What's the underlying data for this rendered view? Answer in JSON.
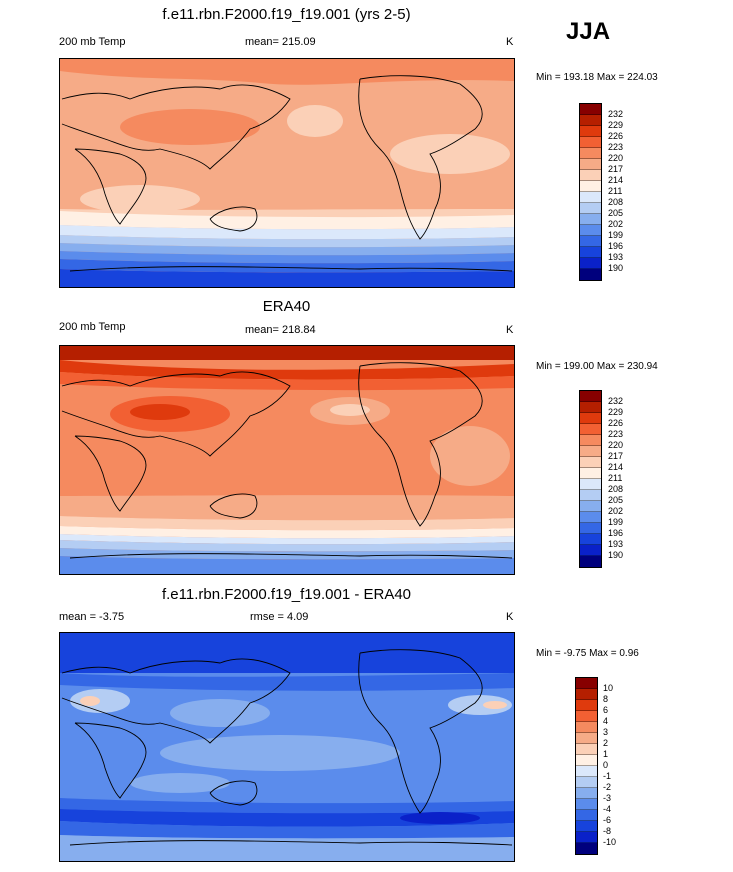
{
  "season": "JJA",
  "panels": [
    {
      "id": "model",
      "title": "f.e11.rbn.F2000.f19_f19.001 (yrs 2-5)",
      "left_label": "200 mb Temp",
      "center_label": "mean= 215.09",
      "right_label": "K",
      "minmax": "Min = 193.18 Max = 224.03",
      "levels": [
        "232",
        "229",
        "226",
        "223",
        "220",
        "217",
        "214",
        "211",
        "208",
        "205",
        "202",
        "199",
        "196",
        "193",
        "190"
      ],
      "colors": [
        "#870000",
        "#b51f00",
        "#df3a0d",
        "#f26033",
        "#f58a5f",
        "#f6ab87",
        "#fbd0b7",
        "#fff0e4",
        "#dbe8fb",
        "#b4cdf3",
        "#87aeee",
        "#5b8cec",
        "#3467e5",
        "#1743dc",
        "#0a21c9",
        "#00007d"
      ]
    },
    {
      "id": "obs",
      "title": "ERA40",
      "left_label": "200 mb Temp",
      "center_label": "mean= 218.84",
      "right_label": "K",
      "minmax": "Min = 199.00 Max = 230.94",
      "levels": [
        "232",
        "229",
        "226",
        "223",
        "220",
        "217",
        "214",
        "211",
        "208",
        "205",
        "202",
        "199",
        "196",
        "193",
        "190"
      ],
      "colors": [
        "#870000",
        "#b51f00",
        "#df3a0d",
        "#f26033",
        "#f58a5f",
        "#f6ab87",
        "#fbd0b7",
        "#fff0e4",
        "#dbe8fb",
        "#b4cdf3",
        "#87aeee",
        "#5b8cec",
        "#3467e5",
        "#1743dc",
        "#0a21c9",
        "#00007d"
      ]
    },
    {
      "id": "diff",
      "title": "f.e11.rbn.F2000.f19_f19.001 - ERA40",
      "left_label": "mean =  -3.75",
      "center_label": "rmse =   4.09",
      "right_label": "K",
      "minmax": "Min =  -9.75 Max =   0.96",
      "levels": [
        "10",
        "8",
        "6",
        "4",
        "3",
        "2",
        "1",
        "0",
        "-1",
        "-2",
        "-3",
        "-4",
        "-6",
        "-8",
        "-10"
      ],
      "colors": [
        "#870000",
        "#b51f00",
        "#df3a0d",
        "#f26033",
        "#f58a5f",
        "#f6ab87",
        "#fbd0b7",
        "#fff0e4",
        "#dbe8fb",
        "#b4cdf3",
        "#87aeee",
        "#5b8cec",
        "#3467e5",
        "#1743dc",
        "#0a21c9",
        "#00007d"
      ]
    }
  ]
}
